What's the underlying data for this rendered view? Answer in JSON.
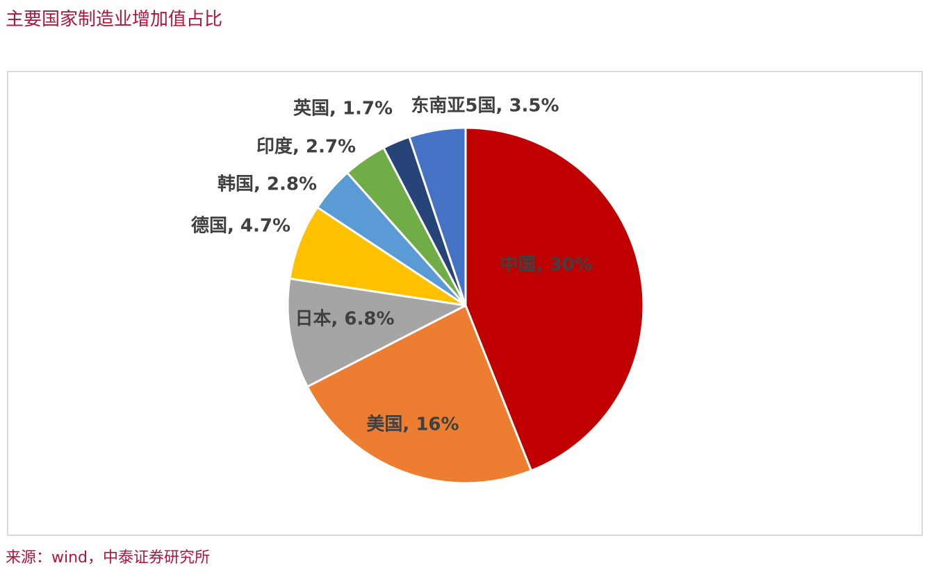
{
  "page": {
    "title": "主要国家制造业增加值占比",
    "source": "来源：wind，中泰证券研究所"
  },
  "chart_data": {
    "type": "pie",
    "title": "",
    "categories": [
      "中国",
      "美国",
      "日本",
      "德国",
      "韩国",
      "印度",
      "英国",
      "东南亚5国"
    ],
    "values": [
      30,
      16,
      6.8,
      4.7,
      2.8,
      2.7,
      1.7,
      3.5
    ],
    "labels": [
      "中国, 30%",
      "美国, 16%",
      "日本, 6.8%",
      "德国, 4.7%",
      "韩国, 2.8%",
      "印度, 2.7%",
      "英国, 1.7%",
      "东南亚5国, 3.5%"
    ],
    "colors": [
      "#c00000",
      "#ed7d31",
      "#a5a5a5",
      "#ffc000",
      "#5b9bd5",
      "#70ad47",
      "#264478",
      "#4472c4"
    ],
    "start": "12 o'clock",
    "direction": "clockwise",
    "legend": "none"
  }
}
